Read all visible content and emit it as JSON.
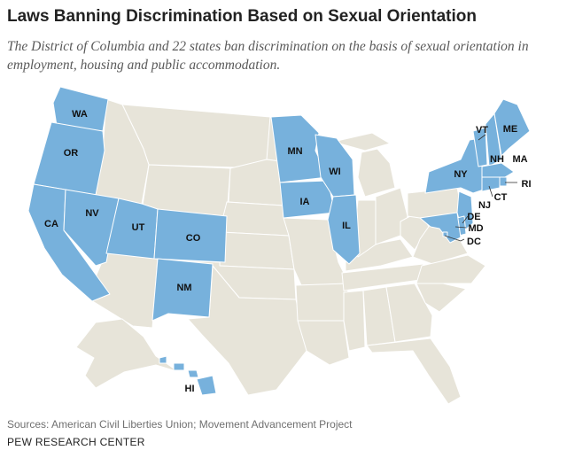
{
  "title": "Laws Banning Discrimination Based on Sexual Orientation",
  "subtitle": "The District of Columbia and 22 states ban discrimination on the basis of sexual orientation in employment, housing and public accommodation.",
  "sources": "Sources: American Civil Liberties Union; Movement Advancement Project",
  "organization": "PEW RESEARCH CENTER",
  "colors": {
    "ban": "#77b1dc",
    "no_ban": "#e7e4d9",
    "border": "#ffffff"
  },
  "map": {
    "highlighted_states": [
      "WA",
      "OR",
      "CA",
      "NV",
      "UT",
      "CO",
      "NM",
      "MN",
      "IA",
      "WI",
      "IL",
      "NY",
      "VT",
      "NH",
      "ME",
      "MA",
      "RI",
      "CT",
      "NJ",
      "DE",
      "MD",
      "DC",
      "HI"
    ],
    "labels": {
      "WA": "WA",
      "OR": "OR",
      "CA": "CA",
      "NV": "NV",
      "UT": "UT",
      "CO": "CO",
      "NM": "NM",
      "MN": "MN",
      "IA": "IA",
      "WI": "WI",
      "IL": "IL",
      "NY": "NY",
      "VT": "VT",
      "NH": "NH",
      "ME": "ME",
      "MA": "MA",
      "RI": "RI",
      "CT": "CT",
      "NJ": "NJ",
      "DE": "DE",
      "MD": "MD",
      "DC": "DC",
      "HI": "HI"
    }
  }
}
